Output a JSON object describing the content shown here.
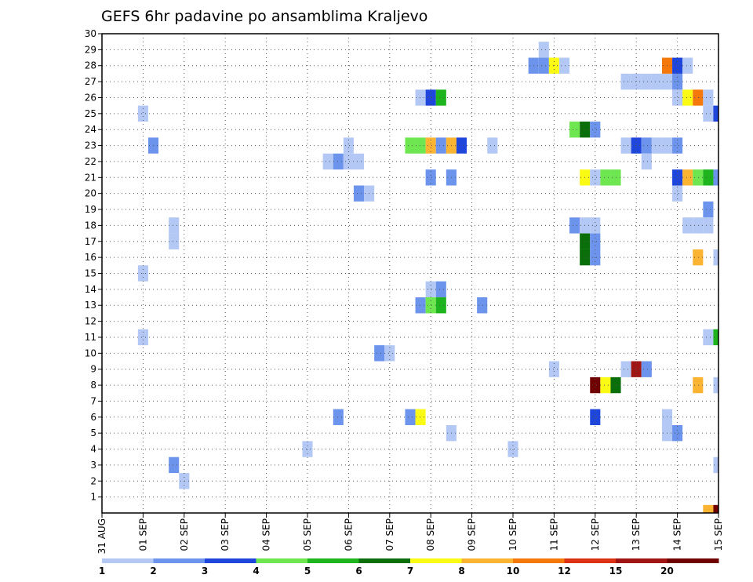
{
  "chart_data": {
    "type": "heatmap",
    "title": "GEFS 6hr padavine po ansamblima Kraljevo",
    "xlabel": "",
    "ylabel": "",
    "x_tick_labels": [
      "31 AUG",
      "01 SEP",
      "02 SEP",
      "03 SEP",
      "04 SEP",
      "05 SEP",
      "06 SEP",
      "07 SEP",
      "08 SEP",
      "09 SEP",
      "10 SEP",
      "11 SEP",
      "12 SEP",
      "13 SEP",
      "14 SEP",
      "15 SEP"
    ],
    "y_tick_labels": [
      "1",
      "2",
      "3",
      "4",
      "5",
      "6",
      "7",
      "8",
      "9",
      "10",
      "11",
      "12",
      "13",
      "14",
      "15",
      "16",
      "17",
      "18",
      "19",
      "20",
      "21",
      "22",
      "23",
      "24",
      "25",
      "26",
      "27",
      "28",
      "29",
      "30"
    ],
    "y_range": [
      0,
      30
    ],
    "grid": true,
    "colorbar": {
      "labels": [
        "1",
        "2",
        "3",
        "4",
        "5",
        "6",
        "7",
        "8",
        "10",
        "12",
        "15",
        "20"
      ],
      "colors": [
        "#b4c8f5",
        "#6c94ec",
        "#1e46dc",
        "#6ee650",
        "#1eb41e",
        "#0a6e0a",
        "#fafa14",
        "#fab432",
        "#f5780a",
        "#dc3214",
        "#a01414",
        "#700000"
      ]
    },
    "cell_value_unit_note_none": "",
    "cells": [
      {
        "x": "01 SEP 00",
        "y": 25,
        "v": 1
      },
      {
        "x": "01 SEP 00",
        "y": 15,
        "v": 1
      },
      {
        "x": "01 SEP 00",
        "y": 11,
        "v": 1
      },
      {
        "x": "01 SEP 06",
        "y": 23,
        "v": 2
      },
      {
        "x": "01 SEP 18",
        "y": 18,
        "v": 1
      },
      {
        "x": "01 SEP 18",
        "y": 17,
        "v": 1
      },
      {
        "x": "01 SEP 18",
        "y": 3,
        "v": 2
      },
      {
        "x": "02 SEP 00",
        "y": 2,
        "v": 1
      },
      {
        "x": "05 SEP 00",
        "y": 4,
        "v": 1
      },
      {
        "x": "05 SEP 12",
        "y": 22,
        "v": 1
      },
      {
        "x": "05 SEP 18",
        "y": 22,
        "v": 2
      },
      {
        "x": "05 SEP 18",
        "y": 6,
        "v": 2
      },
      {
        "x": "06 SEP 00",
        "y": 23,
        "v": 1
      },
      {
        "x": "06 SEP 00",
        "y": 22,
        "v": 1
      },
      {
        "x": "06 SEP 06",
        "y": 22,
        "v": 1
      },
      {
        "x": "06 SEP 06",
        "y": 20,
        "v": 2
      },
      {
        "x": "06 SEP 12",
        "y": 20,
        "v": 1
      },
      {
        "x": "06 SEP 18",
        "y": 10,
        "v": 2
      },
      {
        "x": "07 SEP 00",
        "y": 10,
        "v": 1
      },
      {
        "x": "07 SEP 12",
        "y": 23,
        "v": 4
      },
      {
        "x": "07 SEP 12",
        "y": 6,
        "v": 2
      },
      {
        "x": "07 SEP 18",
        "y": 23,
        "v": 4
      },
      {
        "x": "07 SEP 18",
        "y": 6,
        "v": 7
      },
      {
        "x": "07 SEP 18",
        "y": 26,
        "v": 1
      },
      {
        "x": "07 SEP 18",
        "y": 13,
        "v": 2
      },
      {
        "x": "08 SEP 00",
        "y": 26,
        "v": 3
      },
      {
        "x": "08 SEP 00",
        "y": 23,
        "v": 8
      },
      {
        "x": "08 SEP 00",
        "y": 21,
        "v": 2
      },
      {
        "x": "08 SEP 00",
        "y": 14,
        "v": 1
      },
      {
        "x": "08 SEP 00",
        "y": 13,
        "v": 4
      },
      {
        "x": "08 SEP 06",
        "y": 26,
        "v": 5
      },
      {
        "x": "08 SEP 06",
        "y": 23,
        "v": 2
      },
      {
        "x": "08 SEP 06",
        "y": 14,
        "v": 2
      },
      {
        "x": "08 SEP 06",
        "y": 13,
        "v": 5
      },
      {
        "x": "08 SEP 12",
        "y": 23,
        "v": 8
      },
      {
        "x": "08 SEP 12",
        "y": 21,
        "v": 2
      },
      {
        "x": "08 SEP 12",
        "y": 5,
        "v": 1
      },
      {
        "x": "08 SEP 18",
        "y": 23,
        "v": 3
      },
      {
        "x": "09 SEP 06",
        "y": 13,
        "v": 2
      },
      {
        "x": "09 SEP 12",
        "y": 23,
        "v": 1
      },
      {
        "x": "10 SEP 00",
        "y": 4,
        "v": 1
      },
      {
        "x": "10 SEP 18",
        "y": 29,
        "v": 1
      },
      {
        "x": "10 SEP 12",
        "y": 28,
        "v": 2
      },
      {
        "x": "10 SEP 18",
        "y": 28,
        "v": 2
      },
      {
        "x": "11 SEP 00",
        "y": 28,
        "v": 7
      },
      {
        "x": "11 SEP 06",
        "y": 28,
        "v": 1
      },
      {
        "x": "11 SEP 00",
        "y": 9,
        "v": 1
      },
      {
        "x": "11 SEP 12",
        "y": 24,
        "v": 4
      },
      {
        "x": "11 SEP 18",
        "y": 24,
        "v": 6
      },
      {
        "x": "12 SEP 00",
        "y": 24,
        "v": 2
      },
      {
        "x": "11 SEP 12",
        "y": 18,
        "v": 2
      },
      {
        "x": "11 SEP 18",
        "y": 18,
        "v": 1
      },
      {
        "x": "12 SEP 00",
        "y": 18,
        "v": 1
      },
      {
        "x": "11 SEP 18",
        "y": 17,
        "v": 6
      },
      {
        "x": "11 SEP 18",
        "y": 16,
        "v": 6
      },
      {
        "x": "12 SEP 00",
        "y": 17,
        "v": 2
      },
      {
        "x": "12 SEP 00",
        "y": 16,
        "v": 2
      },
      {
        "x": "11 SEP 18",
        "y": 21,
        "v": 7
      },
      {
        "x": "12 SEP 00",
        "y": 21,
        "v": 1
      },
      {
        "x": "12 SEP 06",
        "y": 21,
        "v": 4
      },
      {
        "x": "12 SEP 12",
        "y": 21,
        "v": 4
      },
      {
        "x": "12 SEP 00",
        "y": 8,
        "v": 20
      },
      {
        "x": "12 SEP 06",
        "y": 8,
        "v": 7
      },
      {
        "x": "12 SEP 12",
        "y": 8,
        "v": 6
      },
      {
        "x": "12 SEP 00",
        "y": 6,
        "v": 3
      },
      {
        "x": "12 SEP 18",
        "y": 23,
        "v": 1
      },
      {
        "x": "13 SEP 00",
        "y": 23,
        "v": 3
      },
      {
        "x": "13 SEP 06",
        "y": 23,
        "v": 2
      },
      {
        "x": "13 SEP 06",
        "y": 22,
        "v": 1
      },
      {
        "x": "13 SEP 12",
        "y": 23,
        "v": 1
      },
      {
        "x": "13 SEP 18",
        "y": 23,
        "v": 1
      },
      {
        "x": "14 SEP 00",
        "y": 23,
        "v": 2
      },
      {
        "x": "12 SEP 18",
        "y": 27,
        "v": 1
      },
      {
        "x": "13 SEP 00",
        "y": 27,
        "v": 1
      },
      {
        "x": "13 SEP 06",
        "y": 27,
        "v": 1
      },
      {
        "x": "13 SEP 12",
        "y": 27,
        "v": 1
      },
      {
        "x": "13 SEP 18",
        "y": 27,
        "v": 1
      },
      {
        "x": "14 SEP 00",
        "y": 27,
        "v": 2
      },
      {
        "x": "13 SEP 18",
        "y": 28,
        "v": 10
      },
      {
        "x": "14 SEP 00",
        "y": 28,
        "v": 3
      },
      {
        "x": "14 SEP 06",
        "y": 28,
        "v": 1
      },
      {
        "x": "14 SEP 00",
        "y": 26,
        "v": 1
      },
      {
        "x": "14 SEP 06",
        "y": 26,
        "v": 7
      },
      {
        "x": "14 SEP 12",
        "y": 26,
        "v": 10
      },
      {
        "x": "14 SEP 18",
        "y": 26,
        "v": 1
      },
      {
        "x": "14 SEP 18",
        "y": 25,
        "v": 1
      },
      {
        "x": "15 SEP 00",
        "y": 25,
        "v": 3
      },
      {
        "x": "12 SEP 18",
        "y": 9,
        "v": 1
      },
      {
        "x": "13 SEP 00",
        "y": 9,
        "v": 15
      },
      {
        "x": "13 SEP 06",
        "y": 9,
        "v": 2
      },
      {
        "x": "14 SEP 00",
        "y": 21,
        "v": 3
      },
      {
        "x": "14 SEP 06",
        "y": 21,
        "v": 8
      },
      {
        "x": "14 SEP 00",
        "y": 20,
        "v": 1
      },
      {
        "x": "14 SEP 12",
        "y": 21,
        "v": 4
      },
      {
        "x": "14 SEP 18",
        "y": 21,
        "v": 5
      },
      {
        "x": "15 SEP 00",
        "y": 21,
        "v": 2
      },
      {
        "x": "14 SEP 18",
        "y": 19,
        "v": 2
      },
      {
        "x": "14 SEP 06",
        "y": 18,
        "v": 1
      },
      {
        "x": "14 SEP 12",
        "y": 18,
        "v": 1
      },
      {
        "x": "14 SEP 18",
        "y": 18,
        "v": 1
      },
      {
        "x": "14 SEP 12",
        "y": 16,
        "v": 8
      },
      {
        "x": "15 SEP 00",
        "y": 16,
        "v": 1
      },
      {
        "x": "14 SEP 18",
        "y": 11,
        "v": 1
      },
      {
        "x": "15 SEP 00",
        "y": 11,
        "v": 5
      },
      {
        "x": "14 SEP 12",
        "y": 8,
        "v": 8
      },
      {
        "x": "15 SEP 00",
        "y": 8,
        "v": 1
      },
      {
        "x": "13 SEP 18",
        "y": 6,
        "v": 1
      },
      {
        "x": "13 SEP 18",
        "y": 5,
        "v": 1
      },
      {
        "x": "14 SEP 00",
        "y": 5,
        "v": 2
      },
      {
        "x": "15 SEP 00",
        "y": 3,
        "v": 1
      },
      {
        "x": "14 SEP 18",
        "y": 0,
        "v": 8
      },
      {
        "x": "15 SEP 00",
        "y": 0,
        "v": 20
      }
    ]
  }
}
